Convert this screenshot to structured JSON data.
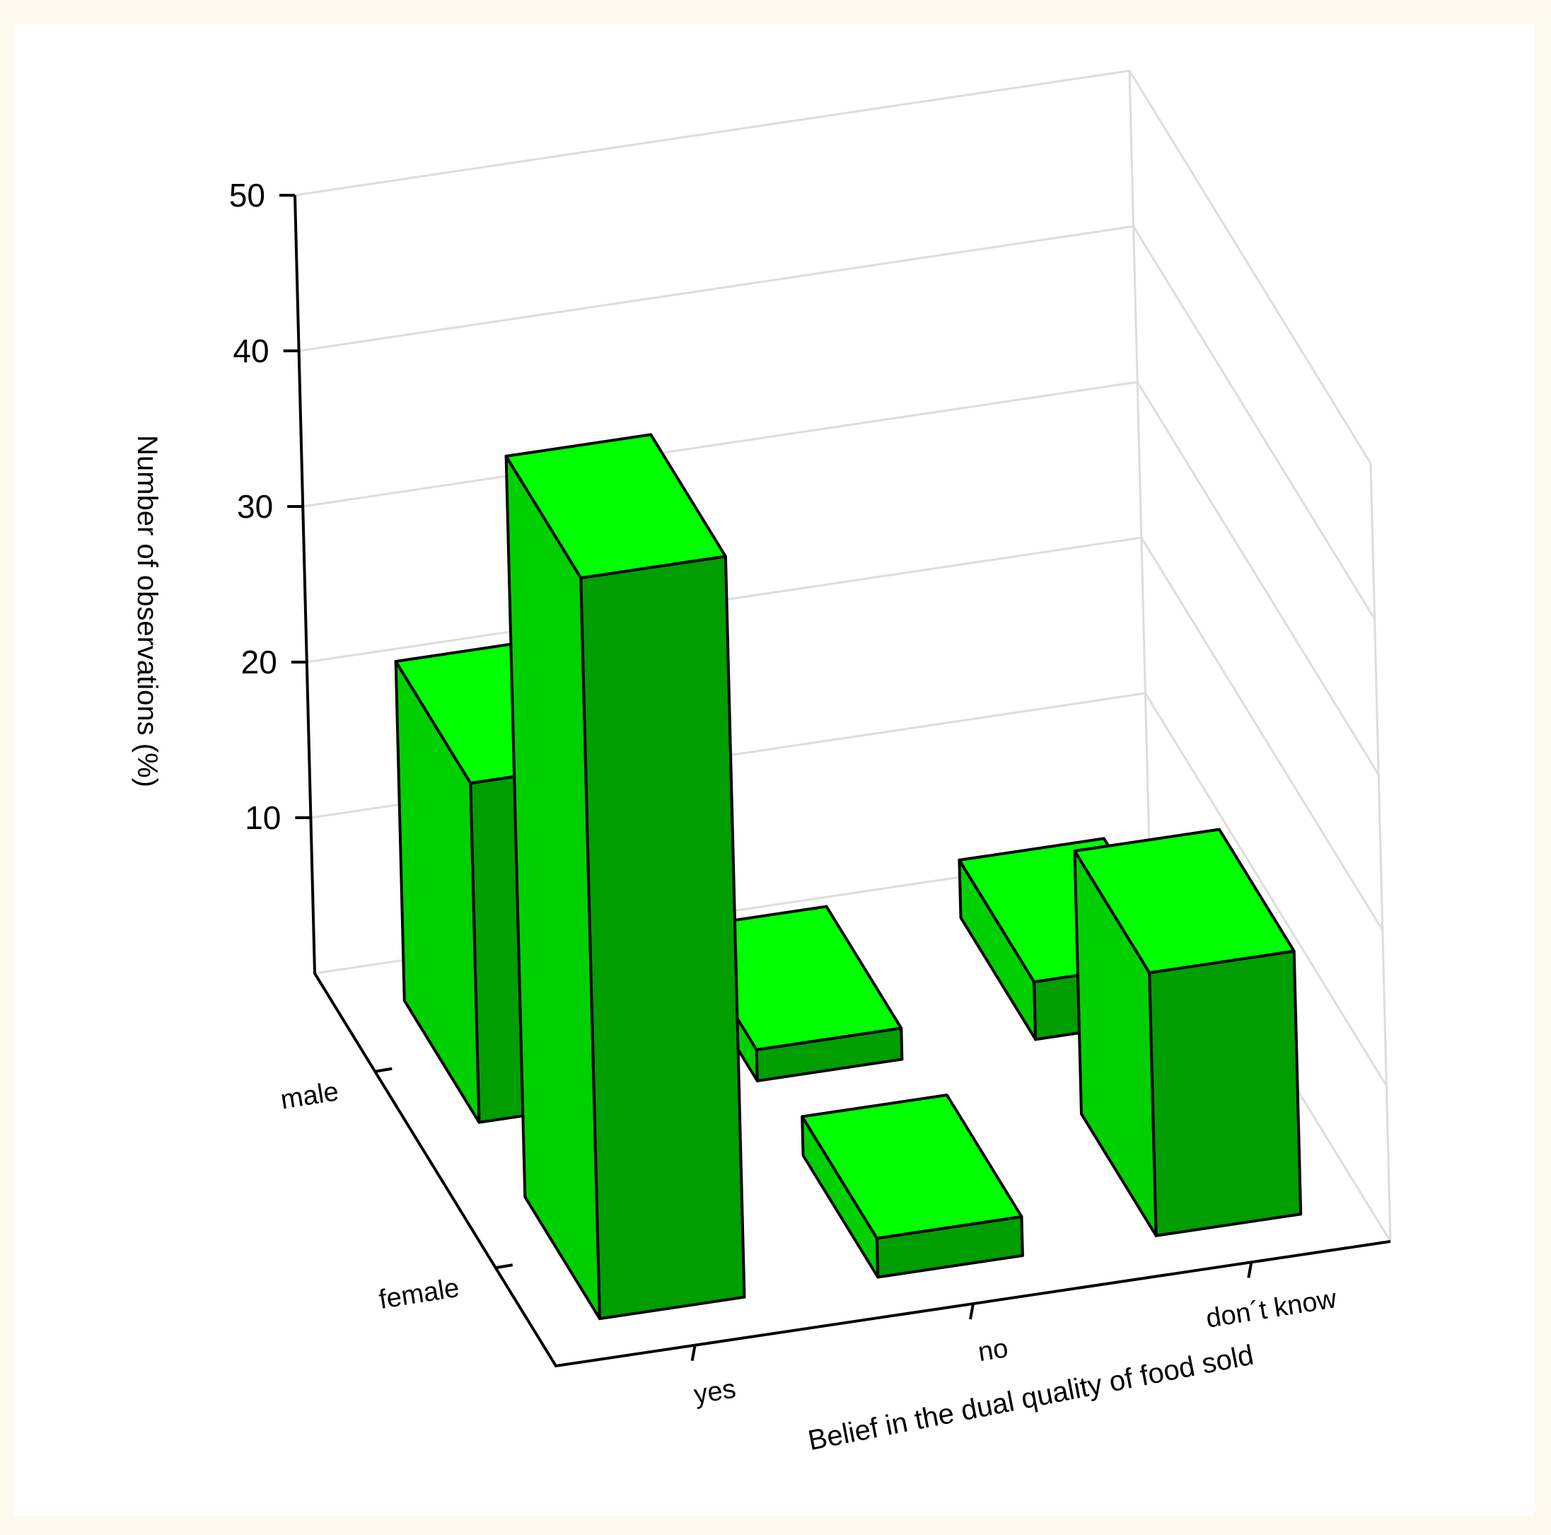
{
  "chart_data": {
    "type": "bar",
    "style": "3d",
    "ylabel": "Number of observations (%)",
    "xlabel": "Belief in the dual quality of food sold",
    "categories": [
      "yes",
      "no",
      "don´t know"
    ],
    "y_ticks": [
      10,
      20,
      30,
      40,
      50
    ],
    "ylim": [
      0,
      50
    ],
    "grid": true,
    "series": [
      {
        "name": "male",
        "values": [
          21.8,
          2.0,
          3.7
        ]
      },
      {
        "name": "female",
        "values": [
          47.6,
          2.5,
          16.9
        ]
      }
    ],
    "colors": {
      "top": "#00ff00",
      "front": "#009e00",
      "side": "#00d000",
      "grid": "#dddddd",
      "axis": "#000000",
      "background": "#fdf9ef"
    }
  }
}
